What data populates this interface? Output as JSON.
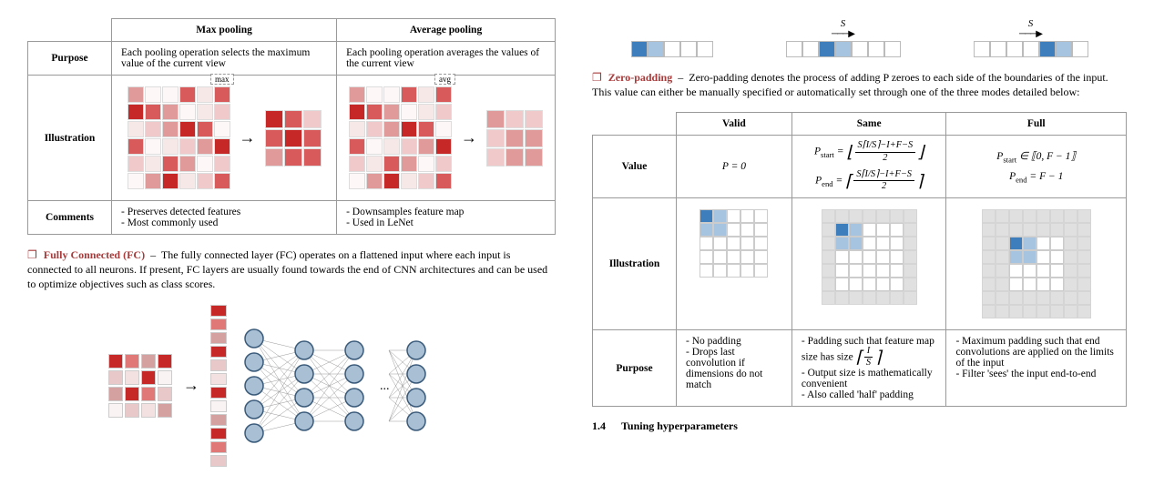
{
  "poolTable": {
    "header": {
      "max": "Max pooling",
      "avg": "Average pooling"
    },
    "rows": {
      "purpose": {
        "label": "Purpose",
        "max": "Each pooling operation selects the maximum value of the current view",
        "avg": "Each pooling operation averages the values of the current view"
      },
      "illustration": {
        "label": "Illustration",
        "maxBadge": "max",
        "avgBadge": "avg"
      },
      "comments": {
        "label": "Comments",
        "max": [
          "Preserves detected features",
          "Most commonly used"
        ],
        "avg": [
          "Downsamples feature map",
          "Used in LeNet"
        ]
      }
    },
    "colors": {
      "palette": [
        "#c62828",
        "#d85a5a",
        "#e09a9a",
        "#f0caca",
        "#f7e8e8",
        "#fdf7f7"
      ],
      "input": [
        [
          2,
          5,
          5,
          1,
          4,
          1
        ],
        [
          0,
          1,
          2,
          5,
          4,
          3
        ],
        [
          4,
          3,
          2,
          0,
          1,
          5
        ],
        [
          1,
          5,
          4,
          3,
          2,
          0
        ],
        [
          3,
          4,
          1,
          2,
          5,
          3
        ],
        [
          5,
          2,
          0,
          4,
          3,
          1
        ]
      ],
      "maxOut": [
        [
          0,
          1,
          3
        ],
        [
          1,
          0,
          1
        ],
        [
          2,
          1,
          1
        ]
      ],
      "avgOut": [
        [
          2,
          3,
          3
        ],
        [
          3,
          2,
          2
        ],
        [
          3,
          2,
          2
        ]
      ]
    }
  },
  "fc": {
    "term": "Fully Connected (FC)",
    "text": "The fully connected layer (FC) operates on a flattened input where each input is connected to all neurons. If present, FC layers are usually found towards the end of CNN architectures and can be used to optimize objectives such as class scores.",
    "gridColors": [
      [
        0,
        1,
        2,
        0
      ],
      [
        3,
        4,
        0,
        5
      ],
      [
        2,
        0,
        1,
        3
      ],
      [
        5,
        3,
        4,
        2
      ]
    ],
    "flatColors": [
      0,
      1,
      2,
      0,
      3,
      4,
      0,
      5,
      2,
      0,
      1,
      3
    ],
    "palette": [
      "#c62828",
      "#e07878",
      "#d4a0a0",
      "#e8c8c8",
      "#f3e0e0",
      "#faf3f3"
    ],
    "neuronFill": "#a8bfd4",
    "neuronStroke": "#3a5a7a",
    "layers": [
      5,
      4,
      4,
      4
    ]
  },
  "zp": {
    "term": "Zero-padding",
    "text": "Zero-padding denotes the process of adding P zeroes to each side of the boundaries of the input. This value can either be manually specified or automatically set through one of the three modes detailed below:",
    "strideLabel": "S",
    "strips": {
      "blue": "#3f7ebd",
      "blueLight": "#a6c4df",
      "configs": [
        {
          "len": 5,
          "filled": [
            0,
            1
          ],
          "s": false
        },
        {
          "len": 7,
          "filled": [
            2,
            3
          ],
          "s": true
        },
        {
          "len": 7,
          "filled": [
            4,
            5
          ],
          "s": true
        }
      ]
    }
  },
  "padTable": {
    "header": {
      "valid": "Valid",
      "same": "Same",
      "full": "Full"
    },
    "rows": {
      "value": {
        "label": "Value",
        "valid": "P = 0",
        "sameStartNum": "S⌈I∕S⌉−I+F−S",
        "sameEndNum": "S⌈I∕S⌉−I+F−S",
        "fullStart": "P_start ∈ ⟦0, F − 1⟧",
        "fullEnd": "P_end = F − 1"
      },
      "illustration": {
        "label": "Illustration"
      },
      "purpose": {
        "label": "Purpose",
        "valid": [
          "No padding",
          "Drops last convolution if dimensions do not match"
        ],
        "same": [
          "Padding such that feature map size has size ⌈I/S⌉",
          "Output size is mathematically convenient",
          "Also called 'half' padding"
        ],
        "full": [
          "Maximum padding such that end convolutions are applied on the limits of the input",
          "Filter 'sees' the input end-to-end"
        ]
      }
    },
    "illus": {
      "blue": "#3f7ebd",
      "blueLight": "#a6c4df",
      "padColor": "#e0e0e0",
      "validSize": 5,
      "validPad": 0,
      "sameSize": 5,
      "samePad": 1,
      "fullSize": 4,
      "fullPad": 2,
      "kernel": [
        [
          0,
          0
        ],
        [
          0,
          1
        ],
        [
          1,
          0
        ],
        [
          1,
          1
        ]
      ]
    }
  },
  "section": {
    "num": "1.4",
    "title": "Tuning hyperparameters"
  }
}
